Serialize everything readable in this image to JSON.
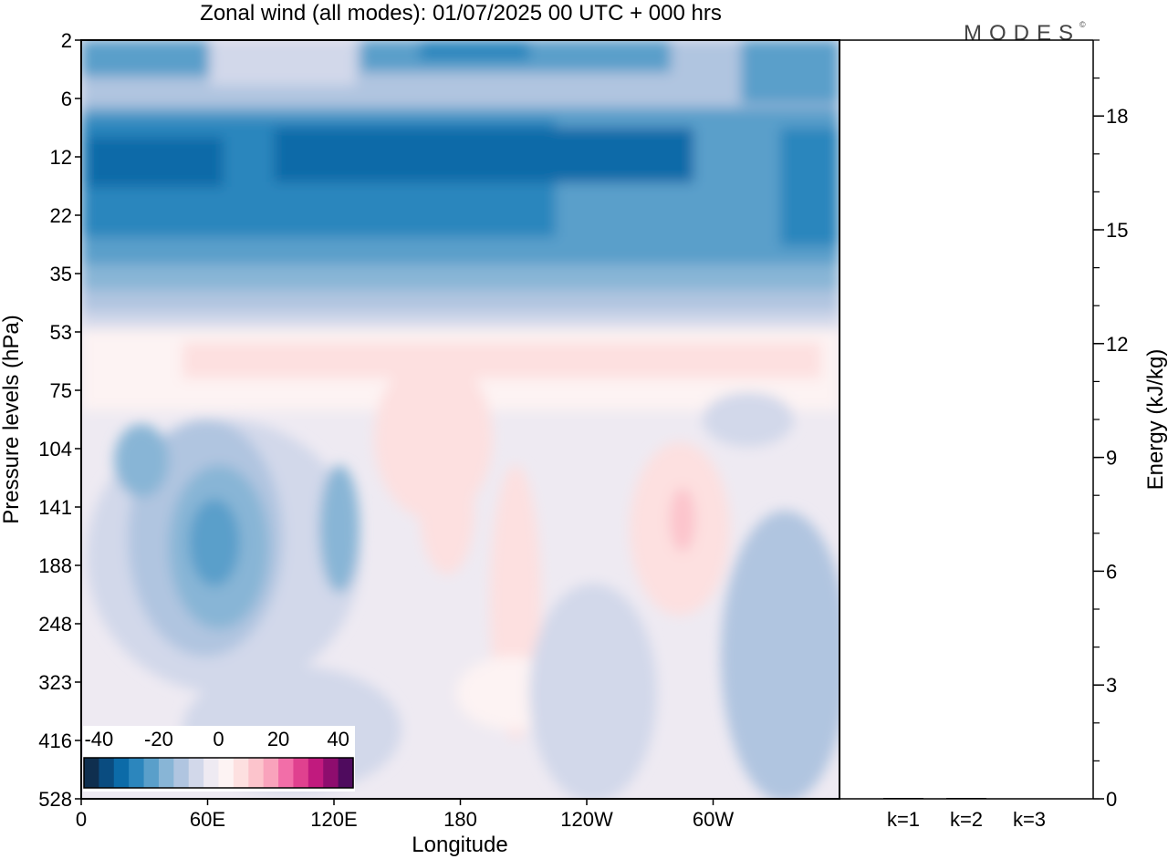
{
  "brand": {
    "logo_text": "MODES",
    "logo_mark": "©"
  },
  "chart_data": [
    {
      "type": "heatmap",
      "title": "Zonal wind (all modes):  01/07/2025  00 UTC  + 000 hrs",
      "xlabel": "Longitude",
      "ylabel": "Pressure levels (hPa)",
      "x_ticks": [
        "0",
        "60E",
        "120E",
        "180",
        "120W",
        "60W"
      ],
      "x_tick_longitudes": [
        0,
        60,
        120,
        180,
        240,
        300
      ],
      "x_range": [
        0,
        360
      ],
      "y_ticks": [
        "2",
        "6",
        "12",
        "22",
        "35",
        "53",
        "75",
        "104",
        "141",
        "188",
        "248",
        "323",
        "416",
        "528"
      ],
      "y_axis_inverted": true,
      "colorbar": {
        "labels": [
          "-40",
          "-20",
          "0",
          "20",
          "40"
        ],
        "label_values": [
          -40,
          -20,
          0,
          20,
          40
        ],
        "range": [
          -45,
          45
        ],
        "step": 5,
        "colors": [
          "#0f2f4f",
          "#0a4c80",
          "#0c6ba8",
          "#2c86bd",
          "#5a9fca",
          "#88b5d6",
          "#b0c5e0",
          "#d2d8ea",
          "#eeeaf2",
          "#fdf3f3",
          "#fde0e0",
          "#fcc4cc",
          "#f9a3bc",
          "#f26ea8",
          "#e0418f",
          "#c11a7e",
          "#8e0d6e",
          "#4f0b5e"
        ]
      },
      "approx_regions": [
        {
          "level_range": [
            "2",
            "6"
          ],
          "description": "mixed weak easterlies, -10 to -30 m/s"
        },
        {
          "level_range": [
            "6",
            "35"
          ],
          "value_range": [
            -40,
            -20
          ],
          "description": "strong easterly jet"
        },
        {
          "level_range": [
            "35",
            "53"
          ],
          "value_range": [
            -15,
            -5
          ]
        },
        {
          "level_range": [
            "53",
            "104"
          ],
          "value_range": [
            0,
            5
          ]
        },
        {
          "longitude_range": [
            40,
            80
          ],
          "level_range": [
            "104",
            "248"
          ],
          "value_range": [
            -30,
            -20
          ]
        },
        {
          "longitude_range": [
            150,
            210
          ],
          "level_range": [
            "75",
            "323"
          ],
          "value_range": [
            0,
            10
          ]
        },
        {
          "longitude_range": [
            265,
            295
          ],
          "level_range": [
            "104",
            "188"
          ],
          "value_range": [
            10,
            15
          ]
        },
        {
          "level_range": [
            "323",
            "528"
          ],
          "value_range": [
            -10,
            0
          ]
        }
      ]
    },
    {
      "type": "bar",
      "categories": [
        "k=1",
        "k=2",
        "k=3"
      ],
      "values": [
        0.02,
        0.01,
        0.0
      ],
      "ylabel": "Energy (kJ/kg)",
      "y_ticks": [
        "0",
        "3",
        "6",
        "9",
        "12",
        "15",
        "18"
      ],
      "y_tick_values": [
        0,
        3,
        6,
        9,
        12,
        15,
        18
      ],
      "ylim": [
        0,
        20
      ],
      "y_minor_step": 1,
      "bar_color": "#1a1a1a"
    }
  ]
}
